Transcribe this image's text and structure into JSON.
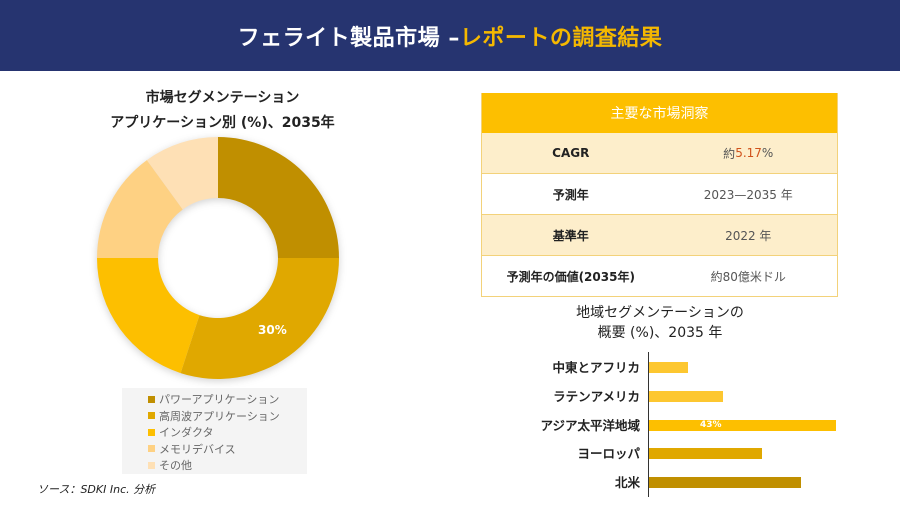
{
  "header": {
    "title_part1": "フェライト製品市場 –",
    "title_part2": "レポートの調査結果"
  },
  "donut": {
    "title_line1": "市場セグメンテーション",
    "title_line2": "アプリケーション別 (%)、2035年",
    "data_label": "30%"
  },
  "legend": {
    "items": [
      {
        "label": "パワーアプリケーション",
        "color": "#c08f00"
      },
      {
        "label": "高周波アプリケーション",
        "color": "#e0a800"
      },
      {
        "label": "インダクタ",
        "color": "#fdbf00"
      },
      {
        "label": "メモリデバイス",
        "color": "#fed183"
      },
      {
        "label": "その他",
        "color": "#fee0b5"
      }
    ]
  },
  "source": "ソース：SDKI Inc. 分析",
  "insights": {
    "header": "主要な市場洞察",
    "rows": [
      {
        "key": "CAGR",
        "value_prefix": "約",
        "value_highlight": "5.17",
        "value_suffix": "%"
      },
      {
        "key": "予測年",
        "value": "2023—2035 年"
      },
      {
        "key": "基準年",
        "value": "2022 年"
      },
      {
        "key": "予測年の価値(2035年)",
        "value": "約80億米ドル"
      }
    ]
  },
  "bars": {
    "title_line1": "地域セグメンテーションの",
    "title_line2": "概要 (%)、2035 年",
    "value_label": "43%"
  },
  "chart_data": [
    {
      "type": "pie",
      "title": "市場セグメンテーション アプリケーション別 (%)、2035年",
      "categories": [
        "パワーアプリケーション",
        "高周波アプリケーション",
        "インダクタ",
        "メモリデバイス",
        "その他"
      ],
      "values": [
        25,
        30,
        20,
        15,
        10
      ],
      "colors": [
        "#c08f00",
        "#e0a800",
        "#fdbf00",
        "#fed183",
        "#fee0b5"
      ],
      "labeled": {
        "高周波アプリケーション": "30%"
      },
      "donut": true,
      "legend_position": "bottom"
    },
    {
      "type": "bar",
      "orientation": "horizontal",
      "title": "地域セグメンテーションの概要 (%)、2035 年",
      "categories": [
        "中東とアフリカ",
        "ラテンアメリカ",
        "アジア太平洋地域",
        "ヨーロッパ",
        "北米"
      ],
      "values": [
        9,
        17,
        43,
        26,
        35
      ],
      "colors": [
        "#fdc730",
        "#fdc730",
        "#fdbf00",
        "#e0a800",
        "#c08f00"
      ],
      "labeled": {
        "アジア太平洋地域": "43%"
      },
      "xlabel": "",
      "ylabel": "",
      "grid": false
    }
  ]
}
